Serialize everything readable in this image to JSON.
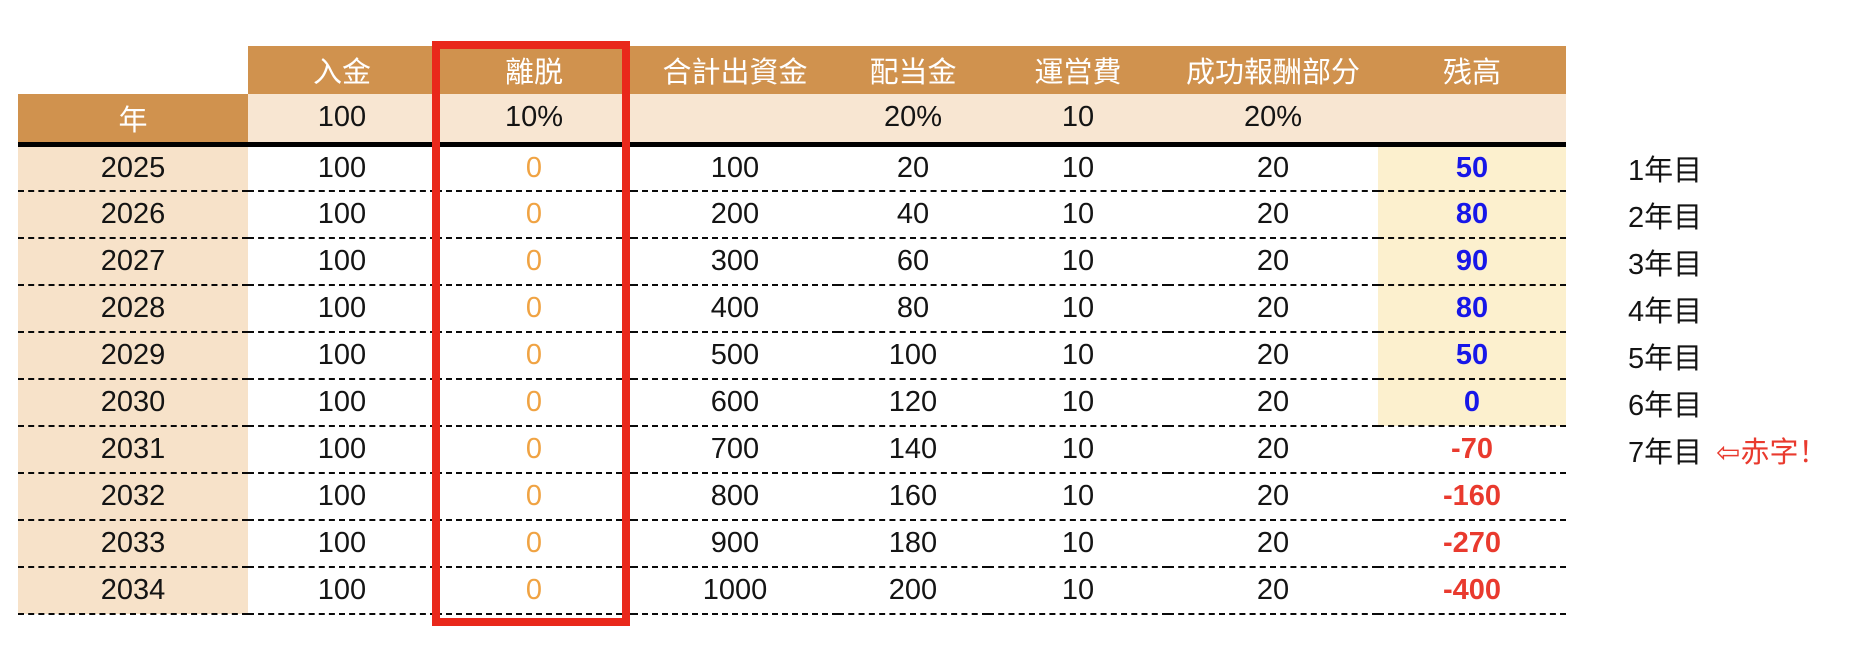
{
  "colors": {
    "header_bg": "#D0924E",
    "header_text": "#ffffff",
    "year_column_bg": "#F7E2C9",
    "parameter_row_bg": "#F8E6D2",
    "balance_highlight_bg": "#FCF0CE",
    "balance_positive_text": "#1717E8",
    "balance_negative_text": "#E93A2E",
    "exit_value_text": "#F0A343",
    "highlight_box_border": "#E9281B",
    "deficit_note_text": "#E93A2E"
  },
  "chart_data": {
    "type": "table",
    "year_header": "年",
    "header_labels": [
      "入金",
      "離脱",
      "合計出資金",
      "配当金",
      "運営費",
      "成功報酬部分",
      "残高"
    ],
    "parameter_values": [
      "100",
      "10%",
      "",
      "20%",
      "10",
      "20%",
      ""
    ],
    "rows": [
      {
        "year": 2025,
        "deposit": 100,
        "exit": 0,
        "total_invested": 100,
        "dividend": 20,
        "opex": 10,
        "success_fee": 20,
        "balance": 50,
        "note": "1年目",
        "note2": ""
      },
      {
        "year": 2026,
        "deposit": 100,
        "exit": 0,
        "total_invested": 200,
        "dividend": 40,
        "opex": 10,
        "success_fee": 20,
        "balance": 80,
        "note": "2年目",
        "note2": ""
      },
      {
        "year": 2027,
        "deposit": 100,
        "exit": 0,
        "total_invested": 300,
        "dividend": 60,
        "opex": 10,
        "success_fee": 20,
        "balance": 90,
        "note": "3年目",
        "note2": ""
      },
      {
        "year": 2028,
        "deposit": 100,
        "exit": 0,
        "total_invested": 400,
        "dividend": 80,
        "opex": 10,
        "success_fee": 20,
        "balance": 80,
        "note": "4年目",
        "note2": ""
      },
      {
        "year": 2029,
        "deposit": 100,
        "exit": 0,
        "total_invested": 500,
        "dividend": 100,
        "opex": 10,
        "success_fee": 20,
        "balance": 50,
        "note": "5年目",
        "note2": ""
      },
      {
        "year": 2030,
        "deposit": 100,
        "exit": 0,
        "total_invested": 600,
        "dividend": 120,
        "opex": 10,
        "success_fee": 20,
        "balance": 0,
        "note": "6年目",
        "note2": ""
      },
      {
        "year": 2031,
        "deposit": 100,
        "exit": 0,
        "total_invested": 700,
        "dividend": 140,
        "opex": 10,
        "success_fee": 20,
        "balance": -70,
        "note": "7年目",
        "note2": "⇦赤字！"
      },
      {
        "year": 2032,
        "deposit": 100,
        "exit": 0,
        "total_invested": 800,
        "dividend": 160,
        "opex": 10,
        "success_fee": 20,
        "balance": -160,
        "note": "",
        "note2": ""
      },
      {
        "year": 2033,
        "deposit": 100,
        "exit": 0,
        "total_invested": 900,
        "dividend": 180,
        "opex": 10,
        "success_fee": 20,
        "balance": -270,
        "note": "",
        "note2": ""
      },
      {
        "year": 2034,
        "deposit": 100,
        "exit": 0,
        "total_invested": 1000,
        "dividend": 200,
        "opex": 10,
        "success_fee": 20,
        "balance": -400,
        "note": "",
        "note2": ""
      }
    ]
  }
}
